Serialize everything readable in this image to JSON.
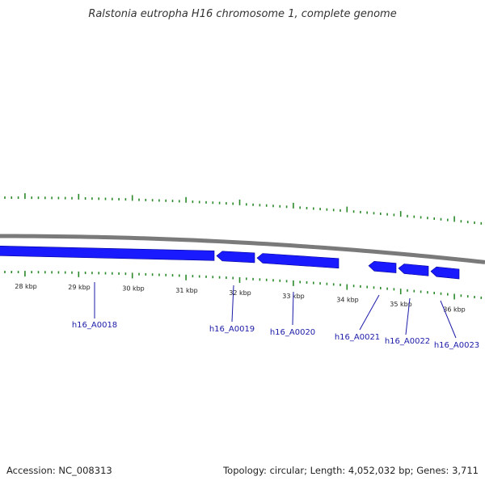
{
  "title": "Ralstonia eutropha H16 chromosome 1, complete genome",
  "footer": {
    "accession": "Accession: NC_008313",
    "summary": "Topology: circular; Length: 4,052,032 bp; Genes: 3,711"
  },
  "colors": {
    "backbone": "#7a7a7a",
    "gene_fill": "#1a1aff",
    "gene_stroke": "#000099",
    "tick": "#2a8a2a",
    "label_line": "#1a1aa8"
  },
  "scale_labels": [
    "28 kbp",
    "29 kbp",
    "30 kbp",
    "31 kbp",
    "32 kbp",
    "33 kbp",
    "34 kbp",
    "35 kbp",
    "36 kbp"
  ],
  "genes": [
    {
      "label": "h16_A0018"
    },
    {
      "label": "h16_A0019"
    },
    {
      "label": "h16_A0020"
    },
    {
      "label": "h16_A0021"
    },
    {
      "label": "h16_A0022"
    },
    {
      "label": "h16_A0023"
    }
  ]
}
